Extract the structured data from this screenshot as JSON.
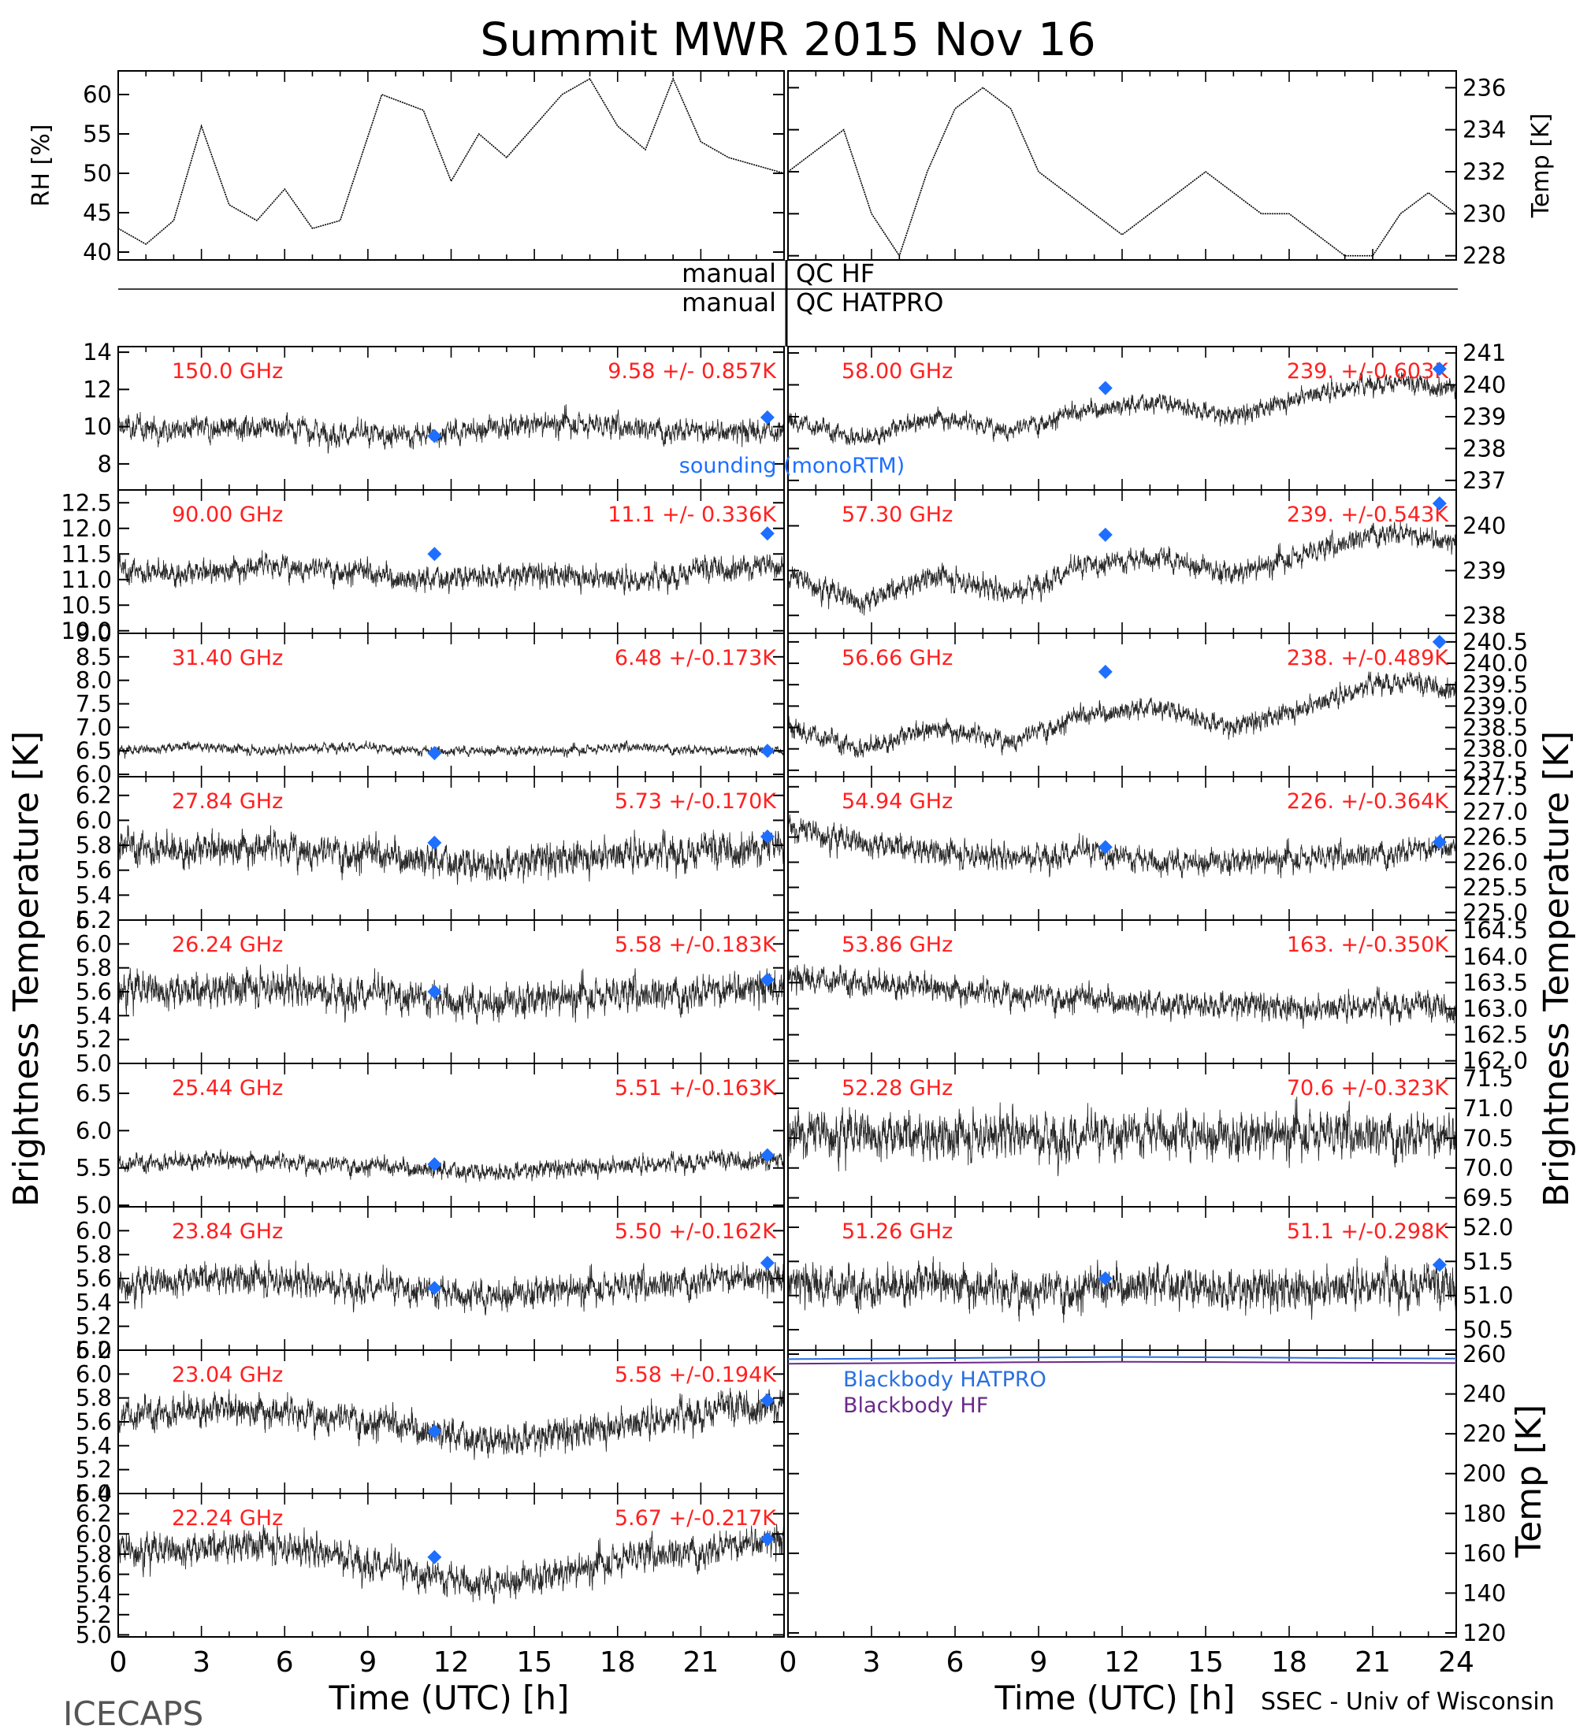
{
  "title": "Summit MWR 2015 Nov 16",
  "footer_left": "ICECAPS",
  "footer_right": "SSEC - Univ of Wisconsin",
  "left_axis_label": "Brightness Temperature [K]",
  "right_axis_label": "Brightness Temperature [K]",
  "x_axis_label_left": "Time (UTC) [h]",
  "x_axis_label_right": "Time (UTC) [h]",
  "qc_labels": {
    "manual_1": "manual",
    "qc_hf": "QC HF",
    "manual_2": "manual",
    "qc_hatpro": "QC HATPRO"
  },
  "sounding_label": "sounding (monoRTM)",
  "colors": {
    "trace": "#000000",
    "annotation": "#ff2020",
    "sounding": "#1e6fff",
    "blackbody_hatpro": "#2a6fe0",
    "blackbody_hf": "#6a2a8a"
  },
  "chart_data": [
    {
      "id": "rh",
      "type": "line",
      "ylabel": "RH [%]",
      "xlim": [
        0,
        24
      ],
      "ylim": [
        39,
        63
      ],
      "yticks": [
        "40",
        "45",
        "50",
        "55",
        "60"
      ],
      "y": [
        43,
        41,
        44,
        56,
        46,
        44,
        48,
        43,
        44,
        60,
        58,
        49,
        55,
        52,
        56,
        60,
        62,
        56,
        53,
        62,
        54,
        52,
        50
      ],
      "x": [
        0,
        1,
        2,
        3,
        4,
        5,
        6,
        7,
        8,
        9.5,
        11,
        12,
        13,
        14,
        15,
        16,
        17,
        18,
        19,
        20,
        21,
        22,
        24
      ]
    },
    {
      "id": "temp",
      "type": "line",
      "ylabel": "Temp [K]",
      "xlim": [
        0,
        24
      ],
      "ylim": [
        227.8,
        236.8
      ],
      "yticks": [
        "228",
        "230",
        "232",
        "234",
        "236"
      ],
      "x": [
        0,
        1,
        2,
        3,
        4,
        5,
        6,
        7,
        8,
        9,
        10,
        11,
        12,
        13,
        14,
        15,
        16,
        17,
        18,
        19,
        20,
        21,
        22,
        23,
        24
      ],
      "y": [
        232,
        233,
        234,
        230,
        228,
        232,
        235,
        236,
        235,
        232,
        231,
        230,
        229,
        230,
        231,
        232,
        231,
        230,
        230,
        229,
        228,
        228,
        230,
        231,
        230
      ]
    },
    {
      "id": "ch150",
      "type": "scatter",
      "freq_label": "150.0 GHz",
      "stats": "9.58 +/- 0.857K",
      "side": "left",
      "xlim": [
        0,
        24
      ],
      "ylim": [
        6.6,
        14.3
      ],
      "yticks": [
        "8",
        "10",
        "12",
        "14"
      ],
      "base": [
        10,
        9.8,
        10.1,
        9.6,
        9.5,
        9.9,
        10.2,
        10.0,
        9.7,
        9.8
      ],
      "noise": 0.75,
      "sounding": [
        {
          "x": 11.4,
          "y": 9.5
        },
        {
          "x": 23.4,
          "y": 10.5
        }
      ]
    },
    {
      "id": "ch90",
      "type": "scatter",
      "freq_label": "90.00 GHz",
      "stats": "11.1 +/- 0.336K",
      "side": "left",
      "xlim": [
        0,
        24
      ],
      "ylim": [
        9.95,
        12.75
      ],
      "yticks": [
        "10.0",
        "10.5",
        "11.0",
        "11.5",
        "12.0",
        "12.5"
      ],
      "base": [
        11.2,
        11.1,
        11.3,
        11.2,
        11.0,
        11.1,
        11.1,
        11.0,
        11.2,
        11.3
      ],
      "noise": 0.28,
      "sounding": [
        {
          "x": 11.4,
          "y": 11.5
        },
        {
          "x": 23.4,
          "y": 11.9
        }
      ]
    },
    {
      "id": "ch31",
      "type": "scatter",
      "freq_label": "31.40 GHz",
      "stats": "6.48 +/-0.173K",
      "side": "left",
      "xlim": [
        0,
        24
      ],
      "ylim": [
        5.95,
        9.0
      ],
      "yticks": [
        "6.0",
        "6.5",
        "7.0",
        "7.5",
        "8.0",
        "8.5",
        "9.0"
      ],
      "base": [
        6.5,
        6.6,
        6.5,
        6.6,
        6.5,
        6.5,
        6.5,
        6.6,
        6.5,
        6.5
      ],
      "noise": 0.12,
      "sounding": [
        {
          "x": 11.4,
          "y": 6.45
        },
        {
          "x": 23.4,
          "y": 6.5
        }
      ]
    },
    {
      "id": "ch2784",
      "type": "scatter",
      "freq_label": "27.84 GHz",
      "stats": "5.73 +/-0.170K",
      "side": "left",
      "xlim": [
        0,
        24
      ],
      "ylim": [
        5.2,
        6.35
      ],
      "yticks": [
        "5.2",
        "5.4",
        "5.6",
        "5.8",
        "6.0",
        "6.2"
      ],
      "base": [
        5.8,
        5.75,
        5.8,
        5.75,
        5.7,
        5.65,
        5.7,
        5.75,
        5.75,
        5.8
      ],
      "noise": 0.16,
      "sounding": [
        {
          "x": 11.4,
          "y": 5.82
        },
        {
          "x": 23.4,
          "y": 5.87
        }
      ]
    },
    {
      "id": "ch2624",
      "type": "scatter",
      "freq_label": "26.24 GHz",
      "stats": "5.58 +/-0.183K",
      "side": "left",
      "xlim": [
        0,
        24
      ],
      "ylim": [
        5.0,
        6.2
      ],
      "yticks": [
        "5.0",
        "5.2",
        "5.4",
        "5.6",
        "5.8",
        "6.0",
        "6.2"
      ],
      "base": [
        5.65,
        5.6,
        5.65,
        5.6,
        5.55,
        5.5,
        5.55,
        5.6,
        5.6,
        5.65
      ],
      "noise": 0.17,
      "sounding": [
        {
          "x": 11.4,
          "y": 5.6
        },
        {
          "x": 23.4,
          "y": 5.7
        }
      ]
    },
    {
      "id": "ch2544",
      "type": "scatter",
      "freq_label": "25.44 GHz",
      "stats": "5.51 +/-0.163K",
      "side": "left",
      "xlim": [
        0,
        24
      ],
      "ylim": [
        4.98,
        6.9
      ],
      "yticks": [
        "5.0",
        "5.5",
        "6.0",
        "6.5"
      ],
      "base": [
        5.55,
        5.6,
        5.6,
        5.55,
        5.5,
        5.45,
        5.5,
        5.55,
        5.6,
        5.6
      ],
      "noise": 0.14,
      "sounding": [
        {
          "x": 11.4,
          "y": 5.55
        },
        {
          "x": 23.4,
          "y": 5.67
        }
      ]
    },
    {
      "id": "ch2384",
      "type": "scatter",
      "freq_label": "23.84 GHz",
      "stats": "5.50 +/-0.162K",
      "side": "left",
      "xlim": [
        0,
        24
      ],
      "ylim": [
        5.0,
        6.2
      ],
      "yticks": [
        "5.0",
        "5.2",
        "5.4",
        "5.6",
        "5.8",
        "6.0"
      ],
      "base": [
        5.55,
        5.6,
        5.6,
        5.55,
        5.5,
        5.45,
        5.5,
        5.55,
        5.6,
        5.6
      ],
      "noise": 0.15,
      "sounding": [
        {
          "x": 11.4,
          "y": 5.52
        },
        {
          "x": 23.4,
          "y": 5.73
        }
      ]
    },
    {
      "id": "ch2304",
      "type": "scatter",
      "freq_label": "23.04 GHz",
      "stats": "5.58 +/-0.194K",
      "side": "left",
      "xlim": [
        0,
        24
      ],
      "ylim": [
        5.0,
        6.2
      ],
      "yticks": [
        "5.0",
        "5.2",
        "5.4",
        "5.6",
        "5.8",
        "6.0",
        "6.2"
      ],
      "base": [
        5.65,
        5.7,
        5.7,
        5.65,
        5.55,
        5.45,
        5.5,
        5.6,
        5.7,
        5.75
      ],
      "noise": 0.16,
      "sounding": [
        {
          "x": 11.4,
          "y": 5.52
        },
        {
          "x": 23.4,
          "y": 5.78
        }
      ]
    },
    {
      "id": "ch2224",
      "type": "scatter",
      "freq_label": "22.24 GHz",
      "stats": "5.67 +/-0.217K",
      "side": "left",
      "xlim": [
        0,
        24
      ],
      "ylim": [
        4.98,
        6.4
      ],
      "yticks": [
        "5.0",
        "5.2",
        "5.4",
        "5.6",
        "5.8",
        "6.0",
        "6.2",
        "6.4"
      ],
      "base": [
        5.85,
        5.85,
        5.9,
        5.8,
        5.6,
        5.5,
        5.6,
        5.8,
        5.85,
        5.95
      ],
      "noise": 0.19,
      "sounding": [
        {
          "x": 11.4,
          "y": 5.77
        },
        {
          "x": 23.4,
          "y": 5.95
        }
      ]
    },
    {
      "id": "ch5800",
      "type": "scatter",
      "freq_label": "58.00 GHz",
      "stats": "239. +/-0.603K",
      "side": "right",
      "xlim": [
        0,
        24
      ],
      "ylim": [
        236.7,
        241.2
      ],
      "yticks": [
        "237",
        "238",
        "239",
        "240",
        "241"
      ],
      "base": [
        238.9,
        238.3,
        239.0,
        238.6,
        239.2,
        239.5,
        239.0,
        239.7,
        240.1,
        239.9
      ],
      "noise": 0.35,
      "sounding": [
        {
          "x": 11.4,
          "y": 239.9
        },
        {
          "x": 23.4,
          "y": 240.5
        }
      ]
    },
    {
      "id": "ch5730",
      "type": "scatter",
      "freq_label": "57.30 GHz",
      "stats": "239. +/-0.543K",
      "side": "right",
      "xlim": [
        0,
        24
      ],
      "ylim": [
        237.6,
        240.8
      ],
      "yticks": [
        "238",
        "239",
        "240"
      ],
      "base": [
        238.9,
        238.3,
        238.9,
        238.5,
        239.1,
        239.3,
        238.9,
        239.4,
        239.9,
        239.6
      ],
      "noise": 0.3,
      "sounding": [
        {
          "x": 11.4,
          "y": 239.8
        },
        {
          "x": 23.4,
          "y": 240.5
        }
      ]
    },
    {
      "id": "ch5666",
      "type": "scatter",
      "freq_label": "56.66 GHz",
      "stats": "238. +/-0.489K",
      "side": "right",
      "xlim": [
        0,
        24
      ],
      "ylim": [
        237.35,
        240.7
      ],
      "yticks": [
        "237.5",
        "238.0",
        "238.5",
        "239.0",
        "239.5",
        "240.0",
        "240.5"
      ],
      "base": [
        238.5,
        238.0,
        238.5,
        238.2,
        238.8,
        239.0,
        238.5,
        239.0,
        239.6,
        239.4
      ],
      "noise": 0.28,
      "sounding": [
        {
          "x": 11.4,
          "y": 239.8
        },
        {
          "x": 23.4,
          "y": 240.5
        }
      ]
    },
    {
      "id": "ch5494",
      "type": "scatter",
      "freq_label": "54.94 GHz",
      "stats": "226. +/-0.364K",
      "side": "right",
      "xlim": [
        0,
        24
      ],
      "ylim": [
        224.85,
        227.7
      ],
      "yticks": [
        "225.0",
        "225.5",
        "226.0",
        "226.5",
        "227.0",
        "227.5"
      ],
      "base": [
        226.7,
        226.4,
        226.2,
        226.1,
        226.2,
        226.0,
        226.0,
        226.1,
        226.2,
        226.3
      ],
      "noise": 0.3,
      "sounding": [
        {
          "x": 11.4,
          "y": 226.3
        },
        {
          "x": 23.4,
          "y": 226.4
        }
      ]
    },
    {
      "id": "ch5386",
      "type": "scatter",
      "freq_label": "53.86 GHz",
      "stats": "163. +/-0.350K",
      "side": "right",
      "xlim": [
        0,
        24
      ],
      "ylim": [
        161.95,
        164.7
      ],
      "yticks": [
        "162.0",
        "162.5",
        "163.0",
        "163.5",
        "164.0",
        "164.5"
      ],
      "base": [
        163.6,
        163.5,
        163.4,
        163.3,
        163.2,
        163.1,
        163.1,
        163.0,
        163.1,
        163.0
      ],
      "noise": 0.3,
      "sounding": []
    },
    {
      "id": "ch5228",
      "type": "scatter",
      "freq_label": "52.28 GHz",
      "stats": "70.6 +/-0.323K",
      "side": "right",
      "xlim": [
        0,
        24
      ],
      "ylim": [
        69.35,
        71.75
      ],
      "yticks": [
        "69.5",
        "70.0",
        "70.5",
        "71.0",
        "71.5"
      ],
      "base": [
        70.6,
        70.6,
        70.5,
        70.6,
        70.5,
        70.6,
        70.5,
        70.6,
        70.6,
        70.5
      ],
      "noise": 0.45,
      "sounding": []
    },
    {
      "id": "ch5126",
      "type": "scatter",
      "freq_label": "51.26 GHz",
      "stats": "51.1 +/-0.298K",
      "side": "right",
      "xlim": [
        0,
        24
      ],
      "ylim": [
        50.2,
        52.3
      ],
      "yticks": [
        "50.5",
        "51.0",
        "51.5",
        "52.0"
      ],
      "base": [
        51.2,
        51.1,
        51.2,
        51.1,
        51.1,
        51.2,
        51.1,
        51.1,
        51.2,
        51.1
      ],
      "noise": 0.35,
      "sounding": [
        {
          "x": 11.4,
          "y": 51.25
        },
        {
          "x": 23.4,
          "y": 51.45
        }
      ]
    },
    {
      "id": "blackbody",
      "type": "line",
      "ylabel": "Temp [K]",
      "xlim": [
        0,
        24
      ],
      "ylim": [
        118,
        262
      ],
      "yticks": [
        "120",
        "140",
        "160",
        "180",
        "200",
        "220",
        "240",
        "260"
      ],
      "series": [
        {
          "name": "Blackbody HATPRO",
          "x": [
            0,
            4,
            8,
            12,
            16,
            20,
            24
          ],
          "y": [
            257.5,
            257.8,
            258.3,
            258.6,
            258.4,
            258.0,
            257.8
          ]
        },
        {
          "name": "Blackbody HF",
          "x": [
            0,
            4,
            8,
            12,
            16,
            20,
            24
          ],
          "y": [
            255.2,
            255.5,
            255.9,
            256.2,
            256.0,
            255.7,
            255.5
          ]
        }
      ]
    }
  ],
  "x_ticks": [
    "0",
    "3",
    "6",
    "9",
    "12",
    "15",
    "18",
    "21",
    "24"
  ],
  "x_ticks_left": [
    "0",
    "3",
    "6",
    "9",
    "12",
    "15",
    "18",
    "21"
  ]
}
